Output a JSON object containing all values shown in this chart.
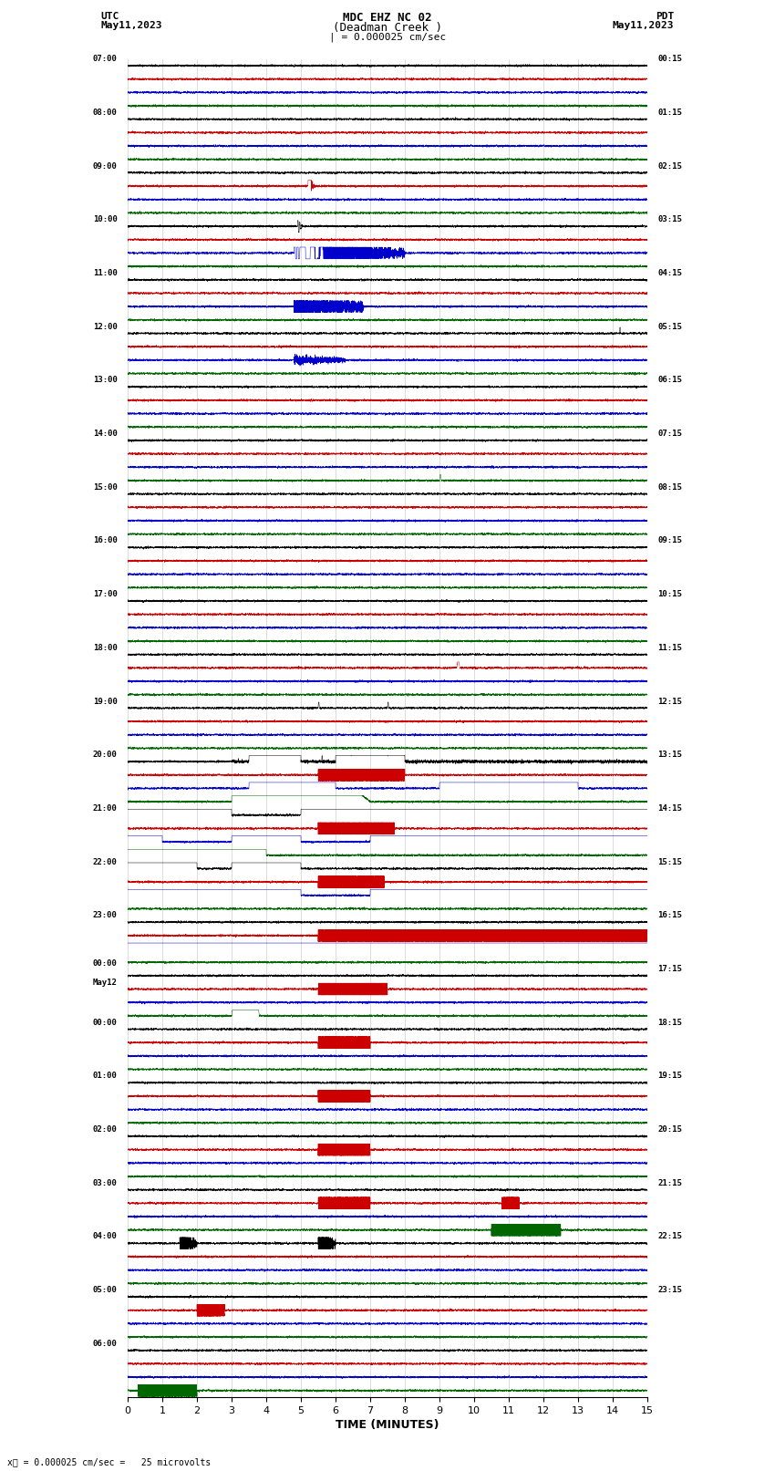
{
  "title_line1": "MDC EHZ NC 02",
  "title_line2": "(Deadman Creek )",
  "title_line3": "| = 0.000025 cm/sec",
  "left_header_line1": "UTC",
  "left_header_line2": "May11,2023",
  "right_header_line1": "PDT",
  "right_header_line2": "May11,2023",
  "xlabel": "TIME (MINUTES)",
  "bottom_label": "= 0.000025 cm/sec =   25 microvolts",
  "x_ticks": [
    0,
    1,
    2,
    3,
    4,
    5,
    6,
    7,
    8,
    9,
    10,
    11,
    12,
    13,
    14,
    15
  ],
  "x_lim": [
    0,
    15
  ],
  "bg_color": "#ffffff",
  "trace_colors": [
    "#000000",
    "#cc0000",
    "#0000cc",
    "#006600"
  ],
  "utc_times": [
    "07:00",
    "",
    "",
    "",
    "08:00",
    "",
    "",
    "",
    "09:00",
    "",
    "",
    "",
    "10:00",
    "",
    "",
    "",
    "11:00",
    "",
    "",
    "",
    "12:00",
    "",
    "",
    "",
    "13:00",
    "",
    "",
    "",
    "14:00",
    "",
    "",
    "",
    "15:00",
    "",
    "",
    "",
    "16:00",
    "",
    "",
    "",
    "17:00",
    "",
    "",
    "",
    "18:00",
    "",
    "",
    "",
    "19:00",
    "",
    "",
    "",
    "20:00",
    "",
    "",
    "",
    "21:00",
    "",
    "",
    "",
    "22:00",
    "",
    "",
    "",
    "23:00",
    "",
    "",
    "",
    "May12",
    "",
    "",
    "",
    "00:00",
    "",
    "",
    "",
    "01:00",
    "",
    "",
    "",
    "02:00",
    "",
    "",
    "",
    "03:00",
    "",
    "",
    "",
    "04:00",
    "",
    "",
    "",
    "05:00",
    "",
    "",
    "",
    "06:00",
    "",
    "",
    ""
  ],
  "utc_major_times": [
    "07:00",
    "08:00",
    "09:00",
    "10:00",
    "11:00",
    "12:00",
    "13:00",
    "14:00",
    "15:00",
    "16:00",
    "17:00",
    "18:00",
    "19:00",
    "20:00",
    "21:00",
    "22:00",
    "23:00",
    "May12",
    "00:00",
    "01:00",
    "02:00",
    "03:00",
    "04:00",
    "05:00",
    "06:00"
  ],
  "pdt_major_times": [
    "00:15",
    "01:15",
    "02:15",
    "03:15",
    "04:15",
    "05:15",
    "06:15",
    "07:15",
    "08:15",
    "09:15",
    "10:15",
    "11:15",
    "12:15",
    "13:15",
    "14:15",
    "15:15",
    "16:15",
    "17:15",
    "18:15",
    "19:15",
    "20:15",
    "21:15",
    "22:15",
    "23:15"
  ],
  "num_rows": 25,
  "traces_per_row": 4,
  "fig_width": 8.5,
  "fig_height": 16.13,
  "dpi": 100,
  "noise_seed": 42
}
